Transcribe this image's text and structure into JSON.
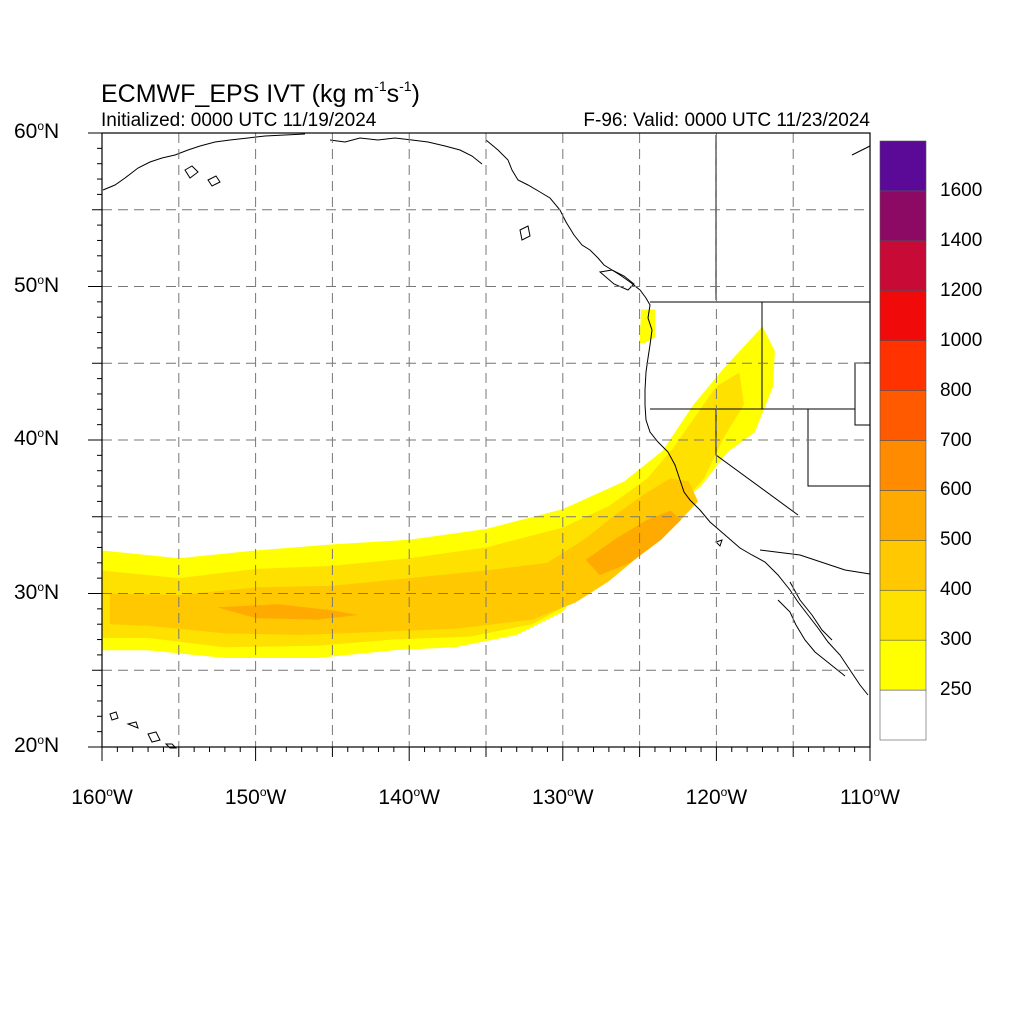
{
  "title": {
    "main": "ECMWF_EPS IVT (kg m",
    "exp1": "-1",
    "mid": "s",
    "exp2": "-1",
    "close": ")"
  },
  "subtitle_left": "Initialized: 0000 UTC 11/19/2024",
  "subtitle_right": "F-96: Valid: 0000 UTC 11/23/2024",
  "lat_labels": [
    {
      "value": 60,
      "num": "60",
      "deg": "o",
      "hemi": "N"
    },
    {
      "value": 50,
      "num": "50",
      "deg": "o",
      "hemi": "N"
    },
    {
      "value": 40,
      "num": "40",
      "deg": "o",
      "hemi": "N"
    },
    {
      "value": 30,
      "num": "30",
      "deg": "o",
      "hemi": "N"
    },
    {
      "value": 20,
      "num": "20",
      "deg": "o",
      "hemi": "N"
    }
  ],
  "lon_labels": [
    {
      "value": -160,
      "num": "160",
      "deg": "o",
      "hemi": "W"
    },
    {
      "value": -150,
      "num": "150",
      "deg": "o",
      "hemi": "W"
    },
    {
      "value": -140,
      "num": "140",
      "deg": "o",
      "hemi": "W"
    },
    {
      "value": -130,
      "num": "130",
      "deg": "o",
      "hemi": "W"
    },
    {
      "value": -120,
      "num": "120",
      "deg": "o",
      "hemi": "W"
    },
    {
      "value": -110,
      "num": "110",
      "deg": "o",
      "hemi": "W"
    }
  ],
  "colorbar": {
    "colors": [
      "#ffffff",
      "#ffff00",
      "#ffe100",
      "#ffc800",
      "#ffaa00",
      "#ff8c00",
      "#ff5a00",
      "#ff3200",
      "#f00a0a",
      "#c80a37",
      "#8c0a64",
      "#5a0a96"
    ],
    "labels": [
      "250",
      "300",
      "400",
      "500",
      "600",
      "700",
      "800",
      "1000",
      "1200",
      "1400",
      "1600"
    ]
  },
  "chart_data": {
    "type": "heatmap",
    "variable": "IVT",
    "units": "kg m-1 s-1",
    "lat_range": [
      20,
      60
    ],
    "lon_range": [
      -160,
      -110
    ],
    "levels": [
      250,
      300,
      400,
      500,
      600,
      700,
      800,
      1000,
      1200,
      1400,
      1600
    ],
    "regions": [
      {
        "level": 250,
        "points": [
          [
            -160,
            32.8
          ],
          [
            -155,
            32.3
          ],
          [
            -150,
            32.8
          ],
          [
            -145,
            33.2
          ],
          [
            -140,
            33.5
          ],
          [
            -135,
            34.2
          ],
          [
            -130,
            35.5
          ],
          [
            -126,
            37.3
          ],
          [
            -123.5,
            39.3
          ],
          [
            -121.5,
            42.3
          ],
          [
            -119.5,
            44.7
          ],
          [
            -117,
            47.4
          ],
          [
            -116.2,
            45.8
          ],
          [
            -116.3,
            43.5
          ],
          [
            -117.5,
            40.5
          ],
          [
            -119.3,
            39.2
          ],
          [
            -121,
            37
          ],
          [
            -123,
            35.3
          ],
          [
            -126,
            33
          ],
          [
            -128.5,
            31
          ],
          [
            -130,
            28.8
          ],
          [
            -133,
            27.3
          ],
          [
            -137,
            26.5
          ],
          [
            -141,
            26.3
          ],
          [
            -146,
            25.8
          ],
          [
            -152,
            25.8
          ],
          [
            -157,
            26.3
          ],
          [
            -160,
            26.3
          ]
        ]
      },
      {
        "level": 250,
        "points": [
          [
            -124.9,
            48.5
          ],
          [
            -124,
            48.5
          ],
          [
            -124,
            46.7
          ],
          [
            -124.7,
            46.3
          ],
          [
            -125,
            46.3
          ]
        ]
      },
      {
        "level": 300,
        "points": [
          [
            -160,
            31.5
          ],
          [
            -155,
            31
          ],
          [
            -150,
            31.6
          ],
          [
            -145,
            31.8
          ],
          [
            -140,
            32.3
          ],
          [
            -135,
            33
          ],
          [
            -130,
            34.3
          ],
          [
            -127,
            35.7
          ],
          [
            -124.5,
            37.5
          ],
          [
            -122.8,
            39.5
          ],
          [
            -121.4,
            41.5
          ],
          [
            -120,
            43.5
          ],
          [
            -118.5,
            44.4
          ],
          [
            -118.2,
            42.3
          ],
          [
            -119.5,
            40.2
          ],
          [
            -120.8,
            37.5
          ],
          [
            -122.3,
            35.8
          ],
          [
            -124.5,
            33.4
          ],
          [
            -127.3,
            31.3
          ],
          [
            -129.6,
            29.3
          ],
          [
            -132,
            28
          ],
          [
            -136,
            27.2
          ],
          [
            -141,
            27
          ],
          [
            -146,
            26.6
          ],
          [
            -152,
            26.5
          ],
          [
            -157,
            27.1
          ],
          [
            -160,
            27.1
          ]
        ]
      },
      {
        "level": 400,
        "points": [
          [
            -159.5,
            30
          ],
          [
            -155,
            29.9
          ],
          [
            -150,
            30.4
          ],
          [
            -145,
            30.5
          ],
          [
            -140,
            31
          ],
          [
            -135,
            31.5
          ],
          [
            -131,
            32
          ],
          [
            -128.5,
            33.6
          ],
          [
            -126.5,
            35.2
          ],
          [
            -124.5,
            36.6
          ],
          [
            -123,
            37.5
          ],
          [
            -121.8,
            37.3
          ],
          [
            -121.2,
            36
          ],
          [
            -122.5,
            34.6
          ],
          [
            -124.6,
            32.8
          ],
          [
            -127,
            30.8
          ],
          [
            -129.2,
            29.4
          ],
          [
            -132,
            28.3
          ],
          [
            -137,
            27.7
          ],
          [
            -142,
            27.5
          ],
          [
            -147,
            27.3
          ],
          [
            -152,
            27.4
          ],
          [
            -157,
            27.9
          ],
          [
            -159.5,
            28
          ]
        ]
      },
      {
        "level": 500,
        "points": [
          [
            -128.5,
            32.2
          ],
          [
            -126.5,
            33.6
          ],
          [
            -124.5,
            34.8
          ],
          [
            -123,
            35.4
          ],
          [
            -122.3,
            34.8
          ],
          [
            -123.6,
            33.5
          ],
          [
            -125.6,
            32
          ],
          [
            -127.6,
            31.2
          ]
        ]
      },
      {
        "level": 500,
        "points": [
          [
            -152.5,
            29.1
          ],
          [
            -148.5,
            29.3
          ],
          [
            -145,
            28.9
          ],
          [
            -143.3,
            28.6
          ],
          [
            -146,
            28.3
          ],
          [
            -150,
            28.4
          ]
        ]
      }
    ]
  }
}
